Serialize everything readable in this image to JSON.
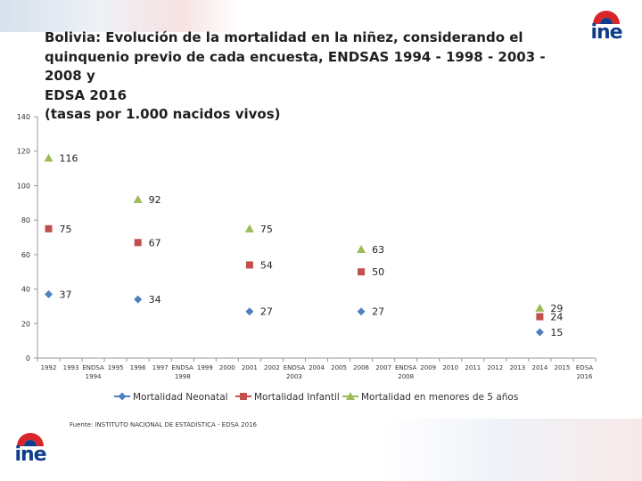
{
  "logo_text": "ine",
  "title_lines": [
    "Bolivia: Evolución de la mortalidad en la niñez, considerando el",
    "quinquenio previo de cada encuesta, ENDSAS 1994 - 1998 - 2003 - 2008 y",
    "EDSA 2016",
    "(tasas por 1.000 nacidos vivos)"
  ],
  "source": "Fuente: INSTITUTO NACIONAL DE ESTADÍSTICA - EDSA 2016",
  "colors": {
    "neonatal": "#4f81bd",
    "infantil": "#c0504d",
    "menores5": "#9bbb59",
    "logo_blue": "#0f3d8c",
    "logo_red": "#d9262b"
  },
  "chart_data": {
    "type": "scatter",
    "title": "Bolivia: Evolución de la mortalidad en la niñez, considerando el quinquenio previo de cada encuesta, ENDSAS 1994 - 1998 - 2003 - 2008 y EDSA 2016",
    "ylim": [
      0,
      140
    ],
    "yticks": [
      0,
      20,
      40,
      60,
      80,
      100,
      120,
      140
    ],
    "grid": false,
    "legend_position": "bottom",
    "categories": [
      [
        "1992"
      ],
      [
        "1993"
      ],
      [
        "ENDSA",
        "1994"
      ],
      [
        "1995"
      ],
      [
        "1996"
      ],
      [
        "1997"
      ],
      [
        "ENDSA",
        "1998"
      ],
      [
        "1999"
      ],
      [
        "2000"
      ],
      [
        "2001"
      ],
      [
        "2002"
      ],
      [
        "ENDSA",
        "2003"
      ],
      [
        "2004"
      ],
      [
        "2005"
      ],
      [
        "2006"
      ],
      [
        "2007"
      ],
      [
        "ENDSA",
        "2008"
      ],
      [
        "2009"
      ],
      [
        "2010"
      ],
      [
        "2011"
      ],
      [
        "2012"
      ],
      [
        "2013"
      ],
      [
        "2014"
      ],
      [
        "2015"
      ],
      [
        "EDSA",
        "2016"
      ]
    ],
    "series": [
      {
        "name": "Mortalidad Neonatal",
        "marker": "diamond",
        "color": "#4f81bd",
        "points": [
          {
            "x": "1992",
            "y": 37
          },
          {
            "x": "1996",
            "y": 34
          },
          {
            "x": "2001",
            "y": 27
          },
          {
            "x": "2006",
            "y": 27
          },
          {
            "x": "2014",
            "y": 15
          }
        ]
      },
      {
        "name": "Mortalidad Infantil",
        "marker": "square",
        "color": "#c0504d",
        "points": [
          {
            "x": "1992",
            "y": 75
          },
          {
            "x": "1996",
            "y": 67
          },
          {
            "x": "2001",
            "y": 54
          },
          {
            "x": "2006",
            "y": 50
          },
          {
            "x": "2014",
            "y": 24
          }
        ]
      },
      {
        "name": "Mortalidad en menores de 5 años",
        "marker": "triangle",
        "color": "#9bbb59",
        "points": [
          {
            "x": "1992",
            "y": 116
          },
          {
            "x": "1996",
            "y": 92
          },
          {
            "x": "2001",
            "y": 75
          },
          {
            "x": "2006",
            "y": 63
          },
          {
            "x": "2014",
            "y": 29
          }
        ]
      }
    ]
  }
}
